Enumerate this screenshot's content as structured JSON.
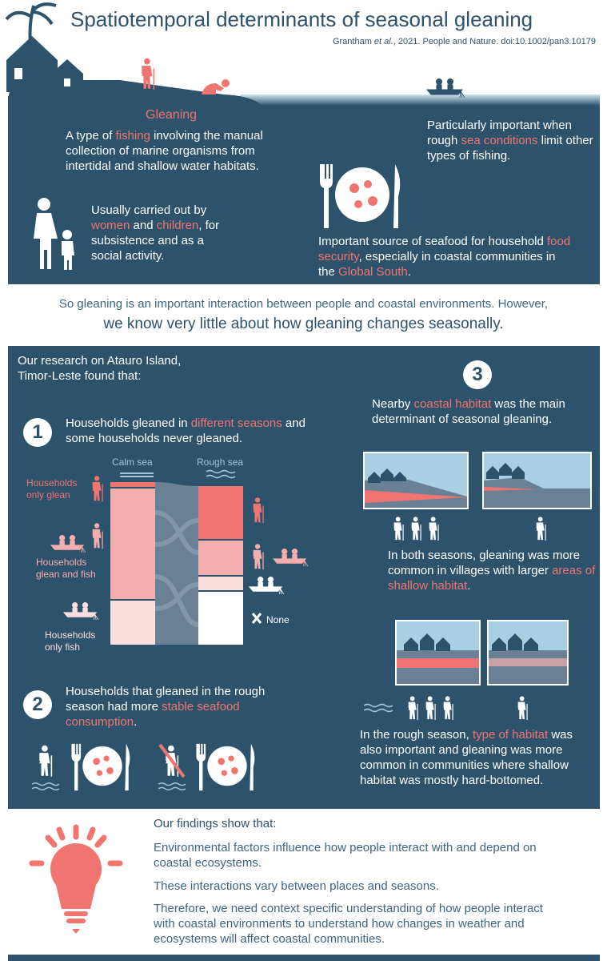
{
  "header": {
    "title": "Spatiotemporal determinants of seasonal gleaning",
    "citation": [
      "Grantham ",
      "et al.",
      ", 2021. People and Nature. doi:10.1002/pan3.10179"
    ]
  },
  "intro": {
    "gleaning_title": "Gleaning",
    "definition": [
      "A type of ",
      "fishing",
      " involving the manual collection of marine organisms from intertidal and shallow water habitats."
    ],
    "rough": [
      "Particularly important when rough ",
      "sea conditions",
      " limit other types of fishing."
    ],
    "women": [
      "Usually carried out by ",
      "women",
      " and ",
      "children",
      ", for subsistence and as a social activity."
    ],
    "food": [
      "Important source of seafood for household ",
      "food security",
      ", especially in coastal communities in the ",
      "Global South",
      "."
    ]
  },
  "bridge": {
    "line1": "So gleaning is an important interaction between people and coastal environments. However,",
    "line2": "we know very little about how gleaning changes seasonally."
  },
  "research": {
    "intro": "Our research on Atauro Island, Timor-Leste found that:",
    "findings": [
      {
        "number": "1",
        "text": [
          "Households gleaned in ",
          "different seasons",
          " and some households never gleaned."
        ]
      },
      {
        "number": "2",
        "text": [
          "Households that gleaned in the rough season had more ",
          "stable seafood consumption",
          "."
        ]
      },
      {
        "number": "3",
        "text": [
          "Nearby ",
          "coastal habitat",
          " was the main determinant of seasonal gleaning."
        ]
      }
    ],
    "alluvial": {
      "calm": "Calm sea",
      "rough": "Rough sea",
      "labels": [
        "Households only glean",
        "Households glean and fish",
        "Households only fish"
      ],
      "none": "None"
    },
    "habitat1": [
      "In both seasons, gleaning was more common in villages with larger ",
      "areas of shallow habitat",
      "."
    ],
    "habitat2": [
      "In the rough season, ",
      "type of habitat",
      " was also important and gleaning was more common in communities where shallow habitat was mostly hard-bottomed."
    ]
  },
  "conclusions": {
    "title": "Our findings show that:",
    "points": [
      "Environmental factors influence how people interact with and depend on coastal ecosystems.",
      "These interactions vary between places and seasons.",
      "Therefore, we need context specific understanding of how people interact with coastal environments to understand how changes in weather and ecosystems will affect coastal communities."
    ]
  }
}
